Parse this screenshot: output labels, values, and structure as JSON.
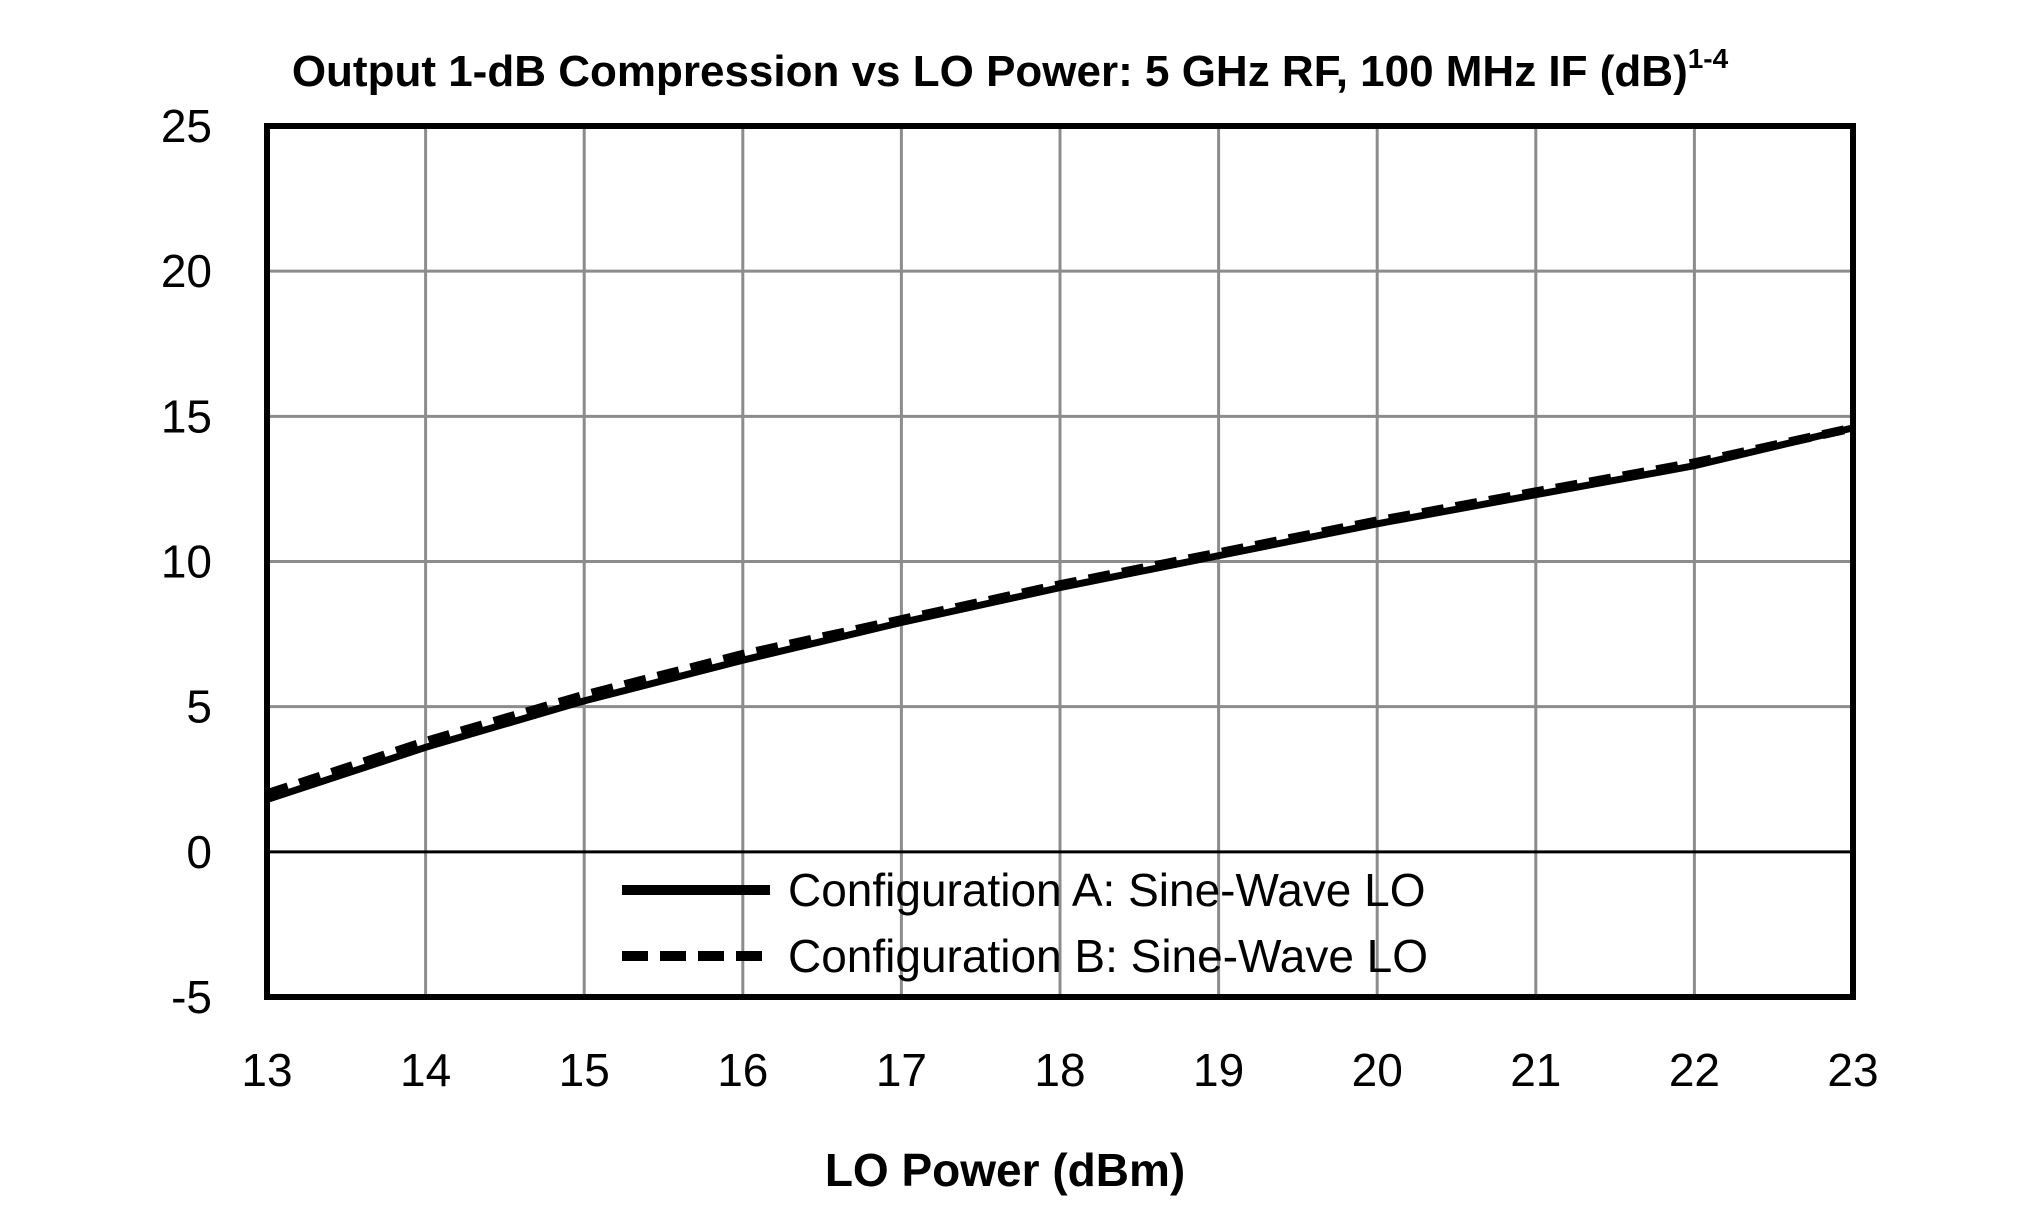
{
  "chart_data": {
    "type": "line",
    "title": "Output 1-dB Compression vs LO Power: 5 GHz RF, 100 MHz IF (dB)",
    "title_superscript": "1-4",
    "xlabel": "LO Power (dBm)",
    "ylabel": "",
    "xlim": [
      13,
      23
    ],
    "ylim": [
      -5,
      25
    ],
    "xticks": [
      13,
      14,
      15,
      16,
      17,
      18,
      19,
      20,
      21,
      22,
      23
    ],
    "yticks": [
      -5,
      0,
      5,
      10,
      15,
      20,
      25
    ],
    "xtick_labels": [
      "13",
      "14",
      "15",
      "16",
      "17",
      "18",
      "19",
      "20",
      "21",
      "22",
      "23"
    ],
    "ytick_labels": [
      "-5",
      "0",
      "5",
      "10",
      "15",
      "20",
      "25"
    ],
    "grid": true,
    "legend_position": "bottom-center",
    "x": [
      13,
      14,
      15,
      16,
      17,
      18,
      19,
      20,
      21,
      22,
      23
    ],
    "series": [
      {
        "name": "Configuration A: Sine-Wave LO",
        "style": "solid",
        "color": "#000000",
        "values": [
          1.8,
          3.6,
          5.2,
          6.6,
          7.9,
          9.1,
          10.2,
          11.3,
          12.3,
          13.3,
          14.6
        ]
      },
      {
        "name": "Configuration B: Sine-Wave LO",
        "style": "dashed",
        "color": "#000000",
        "values": [
          2.0,
          3.8,
          5.4,
          6.8,
          8.0,
          9.2,
          10.3,
          11.4,
          12.4,
          13.4,
          14.6
        ]
      }
    ]
  }
}
